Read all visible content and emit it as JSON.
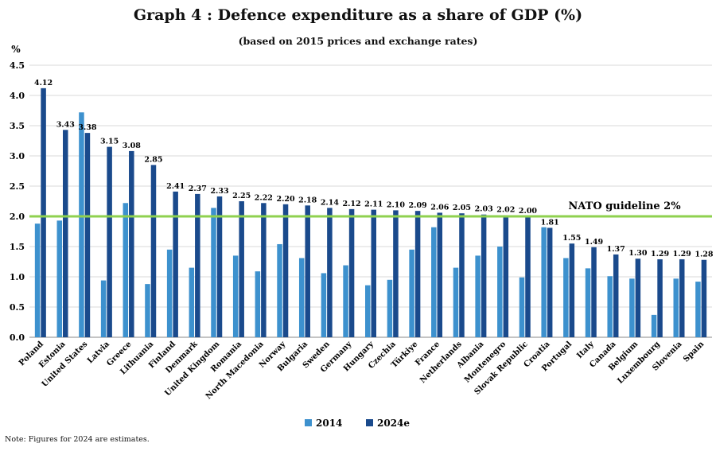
{
  "title": "Graph 4 : Defence expenditure as a share of GDP (%)",
  "subtitle": "(based on 2015 prices and exchange rates)",
  "note": "Note: Figures for 2024 are estimates.",
  "colors": {
    "series_2014": "#3d91ce",
    "series_2024": "#1a4a8c",
    "guideline": "#8fd14f"
  },
  "chart_data": {
    "type": "bar",
    "ylabel": "%",
    "ylim": [
      0,
      4.5
    ],
    "yticks": [
      "0.0",
      "0.5",
      "1.0",
      "1.5",
      "2.0",
      "2.5",
      "3.0",
      "3.5",
      "4.0",
      "4.5"
    ],
    "grid": true,
    "legend_position": "bottom",
    "categories": [
      "Poland",
      "Estonia",
      "United States",
      "Latvia",
      "Greece",
      "Lithuania",
      "Finland",
      "Denmark",
      "United Kingdom",
      "Romania",
      "North Macedonia",
      "Norway",
      "Bulgaria",
      "Sweden",
      "Germany",
      "Hungary",
      "Czechia",
      "Türkiye",
      "France",
      "Netherlands",
      "Albania",
      "Montenegro",
      "Slovak Republic",
      "Croatia",
      "Portugal",
      "Italy",
      "Canada",
      "Belgium",
      "Luxembourg",
      "Slovenia",
      "Spain"
    ],
    "series": [
      {
        "name": "2014",
        "values": [
          1.88,
          1.93,
          3.72,
          0.94,
          2.22,
          0.88,
          1.45,
          1.15,
          2.14,
          1.35,
          1.09,
          1.54,
          1.31,
          1.06,
          1.19,
          0.86,
          0.95,
          1.45,
          1.82,
          1.15,
          1.35,
          1.5,
          0.99,
          1.82,
          1.31,
          1.14,
          1.01,
          0.97,
          0.37,
          0.97,
          0.92
        ]
      },
      {
        "name": "2024e",
        "values": [
          4.12,
          3.43,
          3.38,
          3.15,
          3.08,
          2.85,
          2.41,
          2.37,
          2.33,
          2.25,
          2.22,
          2.2,
          2.18,
          2.14,
          2.12,
          2.11,
          2.1,
          2.09,
          2.06,
          2.05,
          2.03,
          2.02,
          2.0,
          1.81,
          1.55,
          1.49,
          1.37,
          1.3,
          1.29,
          1.29,
          1.28
        ]
      }
    ],
    "data_labels_2024e": [
      "4.12",
      "3.43",
      "3.38",
      "3.15",
      "3.08",
      "2.85",
      "2.41",
      "2.37",
      "2.33",
      "2.25",
      "2.22",
      "2.20",
      "2.18",
      "2.14",
      "2.12",
      "2.11",
      "2.10",
      "2.09",
      "2.06",
      "2.05",
      "2.03",
      "2.02",
      "2.00",
      "1.81",
      "1.55",
      "1.49",
      "1.37",
      "1.30",
      "1.29",
      "1.29",
      "1.28"
    ],
    "annotation": {
      "label": "NATO guideline 2%",
      "value": 2.0
    }
  }
}
